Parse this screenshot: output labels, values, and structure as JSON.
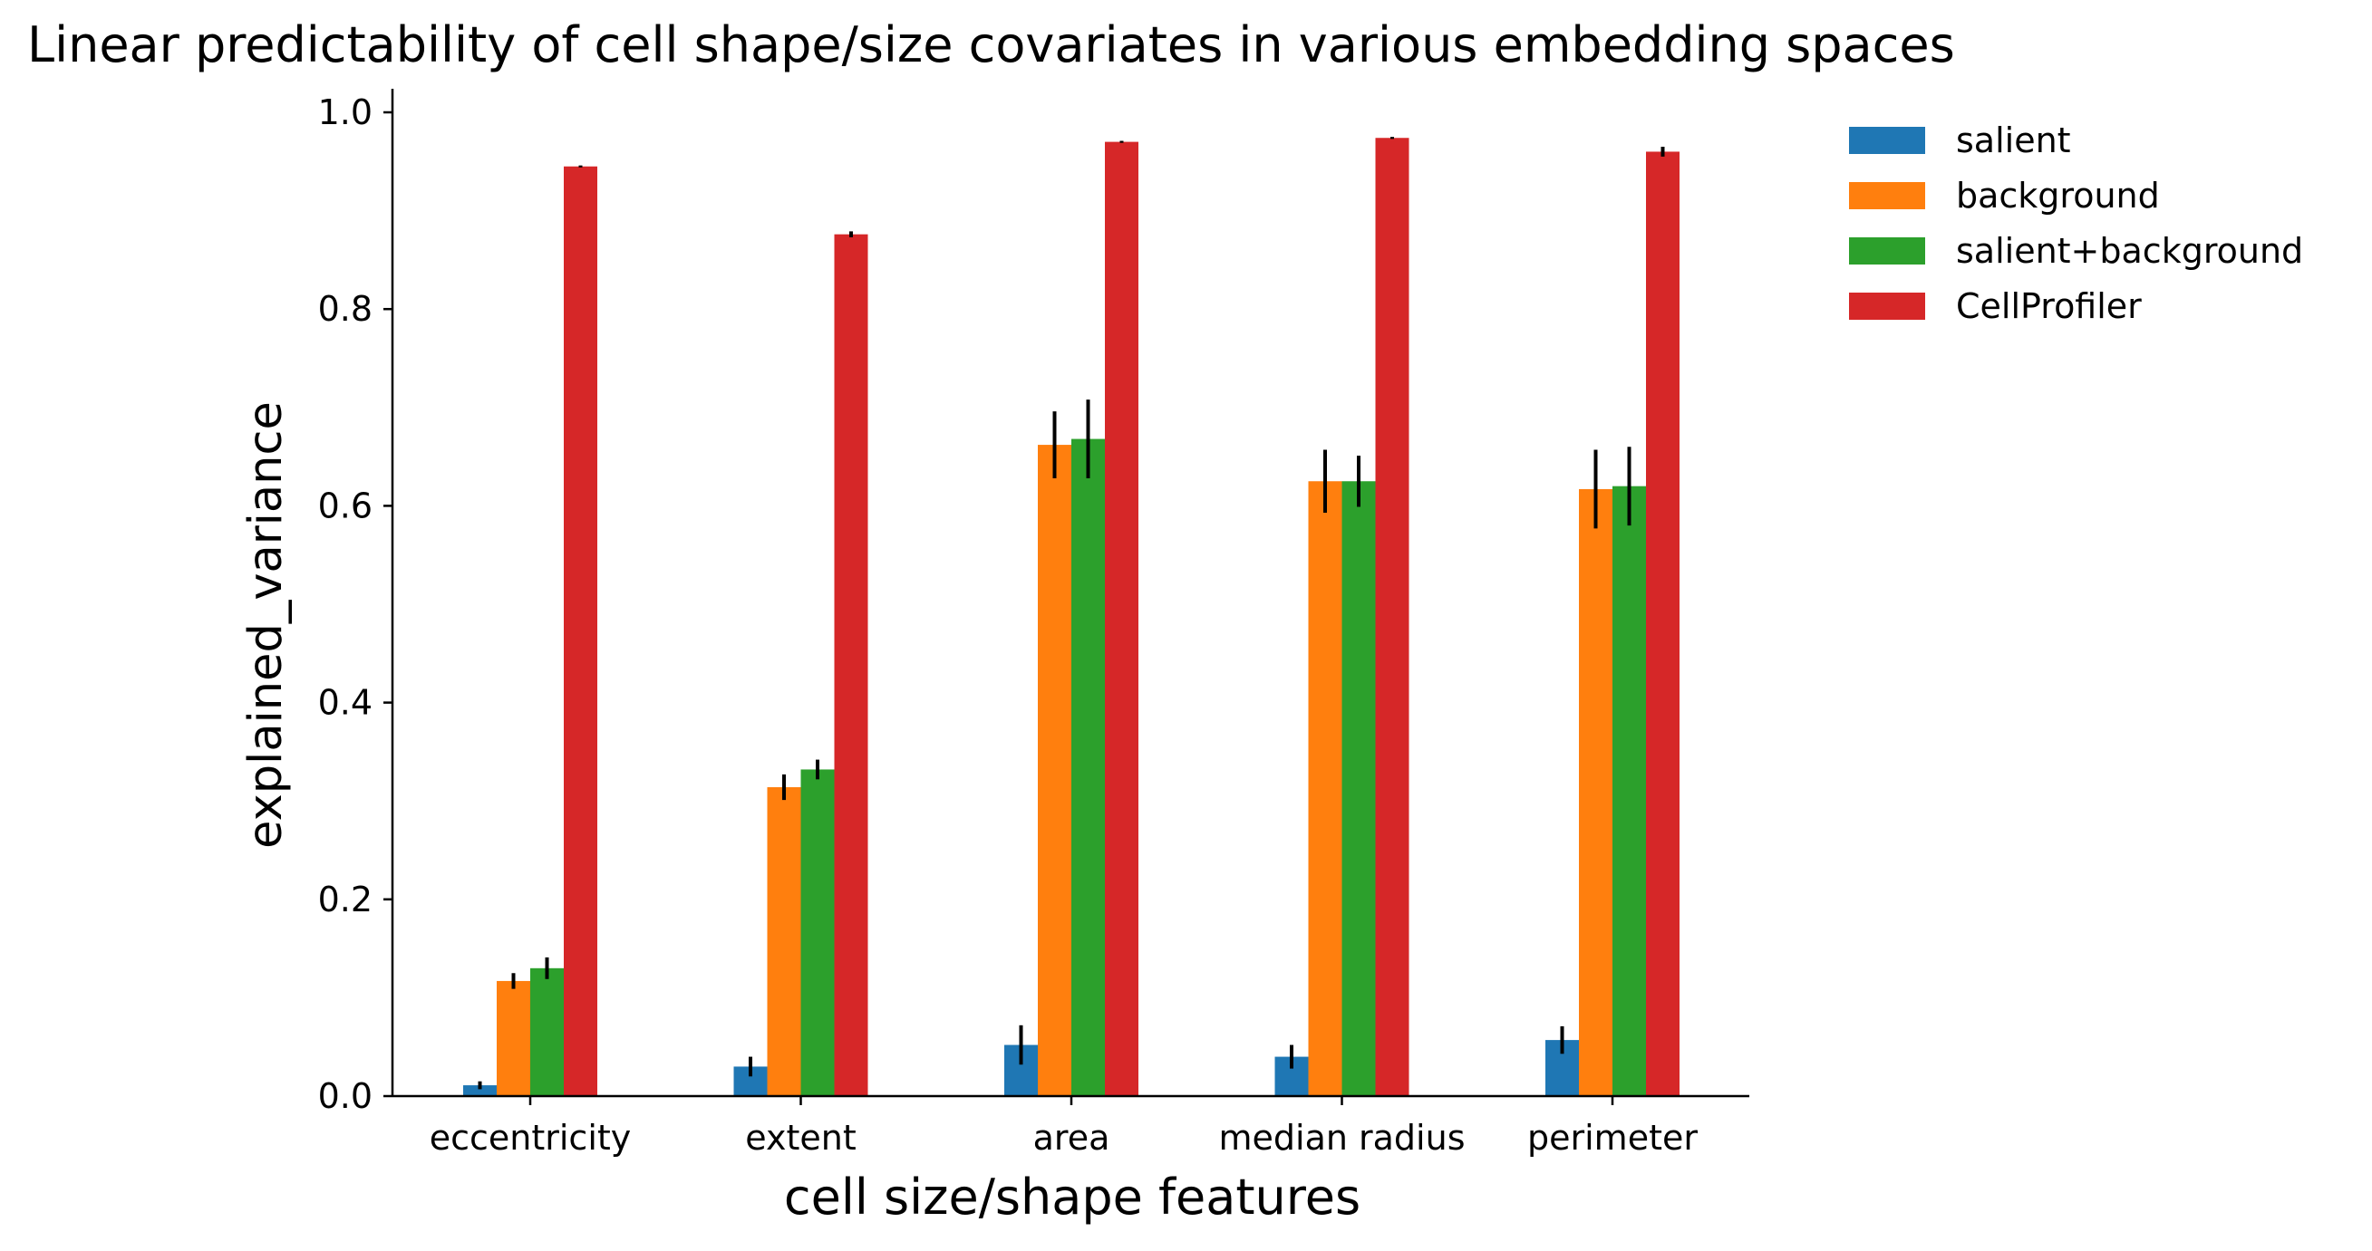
{
  "chart_data": {
    "type": "bar",
    "title": "Linear predictability of cell shape/size covariates in various embedding spaces",
    "xlabel": "cell size/shape features",
    "ylabel": "explained_variance",
    "ylim": [
      0,
      1.0
    ],
    "yticks": [
      "0.0",
      "0.2",
      "0.4",
      "0.6",
      "0.8",
      "1.0"
    ],
    "categories": [
      "eccentricity",
      "extent",
      "area",
      "median radius",
      "perimeter"
    ],
    "legend_position": "outside-top-right",
    "grid": false,
    "series": [
      {
        "name": "salient",
        "color": "#1f77b4",
        "values": [
          0.011,
          0.03,
          0.052,
          0.04,
          0.057
        ],
        "errors": [
          0.004,
          0.01,
          0.02,
          0.012,
          0.014
        ]
      },
      {
        "name": "background",
        "color": "#ff7f0e",
        "values": [
          0.117,
          0.314,
          0.662,
          0.625,
          0.617
        ],
        "errors": [
          0.008,
          0.013,
          0.034,
          0.032,
          0.04
        ]
      },
      {
        "name": "salient+background",
        "color": "#2ca02c",
        "values": [
          0.13,
          0.332,
          0.668,
          0.625,
          0.62
        ],
        "errors": [
          0.011,
          0.01,
          0.04,
          0.026,
          0.04
        ]
      },
      {
        "name": "CellProfiler",
        "color": "#d62728",
        "values": [
          0.945,
          0.876,
          0.97,
          0.974,
          0.96
        ],
        "errors": [
          0.001,
          0.003,
          0.001,
          0.001,
          0.005
        ]
      }
    ]
  }
}
